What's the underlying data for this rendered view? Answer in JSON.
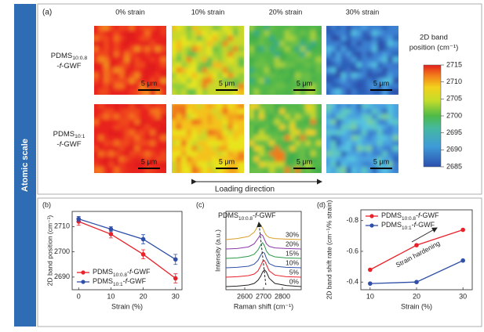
{
  "side_label": "Atomic scale",
  "panel_a": {
    "label": "(a)",
    "columns": [
      "0% strain",
      "10% strain",
      "20% strain",
      "30% strain"
    ],
    "rows": [
      [
        "PDMS10:0.8",
        "-f-GWF"
      ],
      [
        "PDMS10:1",
        "-f-GWF"
      ]
    ],
    "scale_bar": "5 μm",
    "loading_direction": "Loading direction",
    "colorbar": {
      "title": [
        "2D band",
        "position (cm⁻¹)"
      ],
      "lim": [
        2685,
        2715
      ],
      "ticks": [
        2685,
        2690,
        2695,
        2700,
        2705,
        2710,
        2715
      ]
    }
  },
  "chart_data": [
    {
      "type": "line",
      "label": "(b)",
      "x_label": "Strain (%)",
      "y_label": "2D band position (cm⁻¹)",
      "x": [
        0,
        10,
        20,
        30
      ],
      "xlim": [
        -2,
        32
      ],
      "xticks": [
        0,
        10,
        20,
        30
      ],
      "ylim": [
        2685,
        2716
      ],
      "yticks": [
        2690,
        2700,
        2710
      ],
      "legend": "lower left",
      "series": [
        {
          "name": "PDMS10:0.8-f-GWF",
          "color": "#e8212a",
          "values": [
            2712,
            2707,
            2699,
            2689.5
          ],
          "errors": [
            1.5,
            1.5,
            1.8,
            1.8
          ]
        },
        {
          "name": "PDMS10:1-f-GWF",
          "color": "#2f4fa8",
          "values": [
            2713,
            2709,
            2705,
            2697
          ],
          "errors": [
            1,
            1,
            1.8,
            2
          ]
        }
      ]
    },
    {
      "type": "spectra",
      "label": "(c)",
      "x_label": "Raman shift (cm⁻¹)",
      "y_label": "Intensity (a.u.)",
      "annotation": "PDMS10:0.8-f-GWF",
      "x": [
        2500,
        2560,
        2620,
        2650,
        2670,
        2685,
        2695,
        2705,
        2715,
        2730,
        2760,
        2820,
        2900
      ],
      "xlim": [
        2500,
        2900
      ],
      "xticks": [
        2600,
        2700,
        2800
      ],
      "ylim": [
        0,
        7.5
      ],
      "series": [
        {
          "name": "0%",
          "color": "#222222",
          "values": [
            0.3,
            0.35,
            0.45,
            0.6,
            0.9,
            1.3,
            1.7,
            1.9,
            1.7,
            1.1,
            0.6,
            0.4,
            0.3
          ]
        },
        {
          "name": "5%",
          "color": "#e8212a",
          "values": [
            1.2,
            1.25,
            1.35,
            1.5,
            1.8,
            2.3,
            2.7,
            2.8,
            2.4,
            1.8,
            1.4,
            1.25,
            1.2
          ]
        },
        {
          "name": "10%",
          "color": "#2f4fa8",
          "values": [
            2.1,
            2.15,
            2.25,
            2.45,
            2.8,
            3.3,
            3.6,
            3.5,
            3.0,
            2.5,
            2.25,
            2.15,
            2.1
          ]
        },
        {
          "name": "15%",
          "color": "#2a9a4a",
          "values": [
            3.0,
            3.05,
            3.2,
            3.4,
            3.8,
            4.3,
            4.5,
            4.2,
            3.7,
            3.35,
            3.15,
            3.05,
            3.0
          ]
        },
        {
          "name": "20%",
          "color": "#8a3aa8",
          "values": [
            3.9,
            3.95,
            4.1,
            4.4,
            4.9,
            5.3,
            5.2,
            4.8,
            4.4,
            4.15,
            4.0,
            3.95,
            3.9
          ]
        },
        {
          "name": "30%",
          "color": "#d9a02a",
          "values": [
            4.8,
            4.9,
            5.1,
            5.5,
            6.1,
            6.2,
            5.9,
            5.5,
            5.2,
            5.0,
            4.9,
            4.85,
            4.8
          ]
        }
      ]
    },
    {
      "type": "line",
      "label": "(d)",
      "x_label": "Strain (%)",
      "y_label": "2D band shift rate (cm⁻¹/% strain)",
      "annotation": "Strain hardening",
      "x": [
        10,
        20,
        30
      ],
      "xlim": [
        8,
        32
      ],
      "xticks": [
        10,
        20,
        30
      ],
      "ylim": [
        -0.35,
        -0.87
      ],
      "yticks": [
        -0.8,
        -0.6,
        -0.4
      ],
      "legend": "upper left",
      "series": [
        {
          "name": "PDMS10:0.8-f-GWF",
          "color": "#e8212a",
          "values": [
            -0.48,
            -0.64,
            -0.74
          ]
        },
        {
          "name": "PDMS10:1-f-GWF",
          "color": "#2f4fa8",
          "values": [
            -0.39,
            -0.4,
            -0.54
          ]
        }
      ]
    }
  ]
}
